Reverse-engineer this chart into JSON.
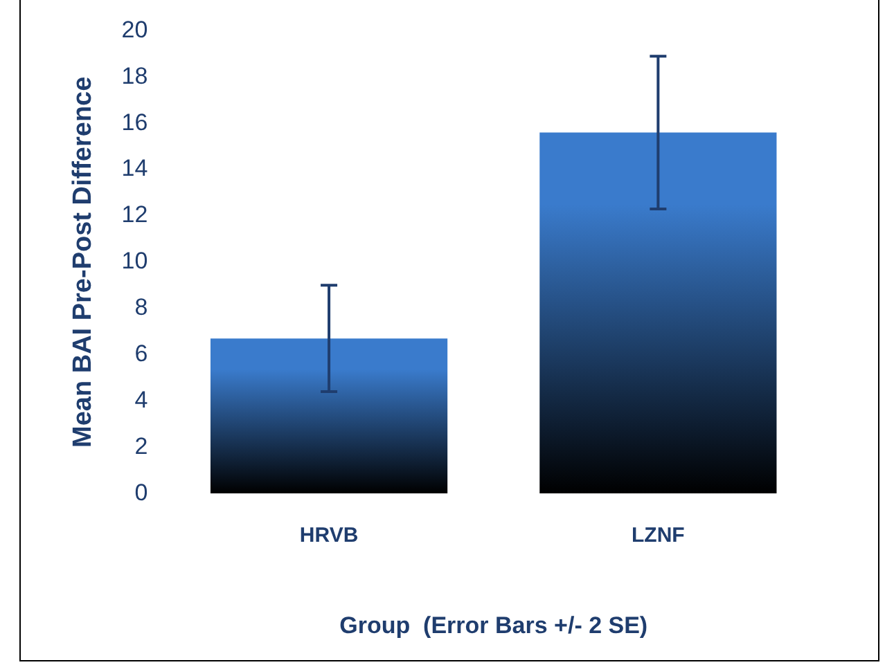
{
  "chart_data": {
    "type": "bar",
    "xlabel": "Group  (Error Bars +/- 2 SE)",
    "ylabel": "Mean BAI Pre-Post Difference",
    "categories": [
      "HRVB",
      "LZNF"
    ],
    "values": [
      6.7,
      15.6
    ],
    "errors": [
      2.3,
      3.3
    ],
    "color": "#3a7bcc",
    "ylim": [
      0,
      20
    ],
    "yticks": [
      0,
      2,
      4,
      6,
      8,
      10,
      12,
      14,
      16,
      18,
      20
    ],
    "grid": false,
    "legend": false
  }
}
